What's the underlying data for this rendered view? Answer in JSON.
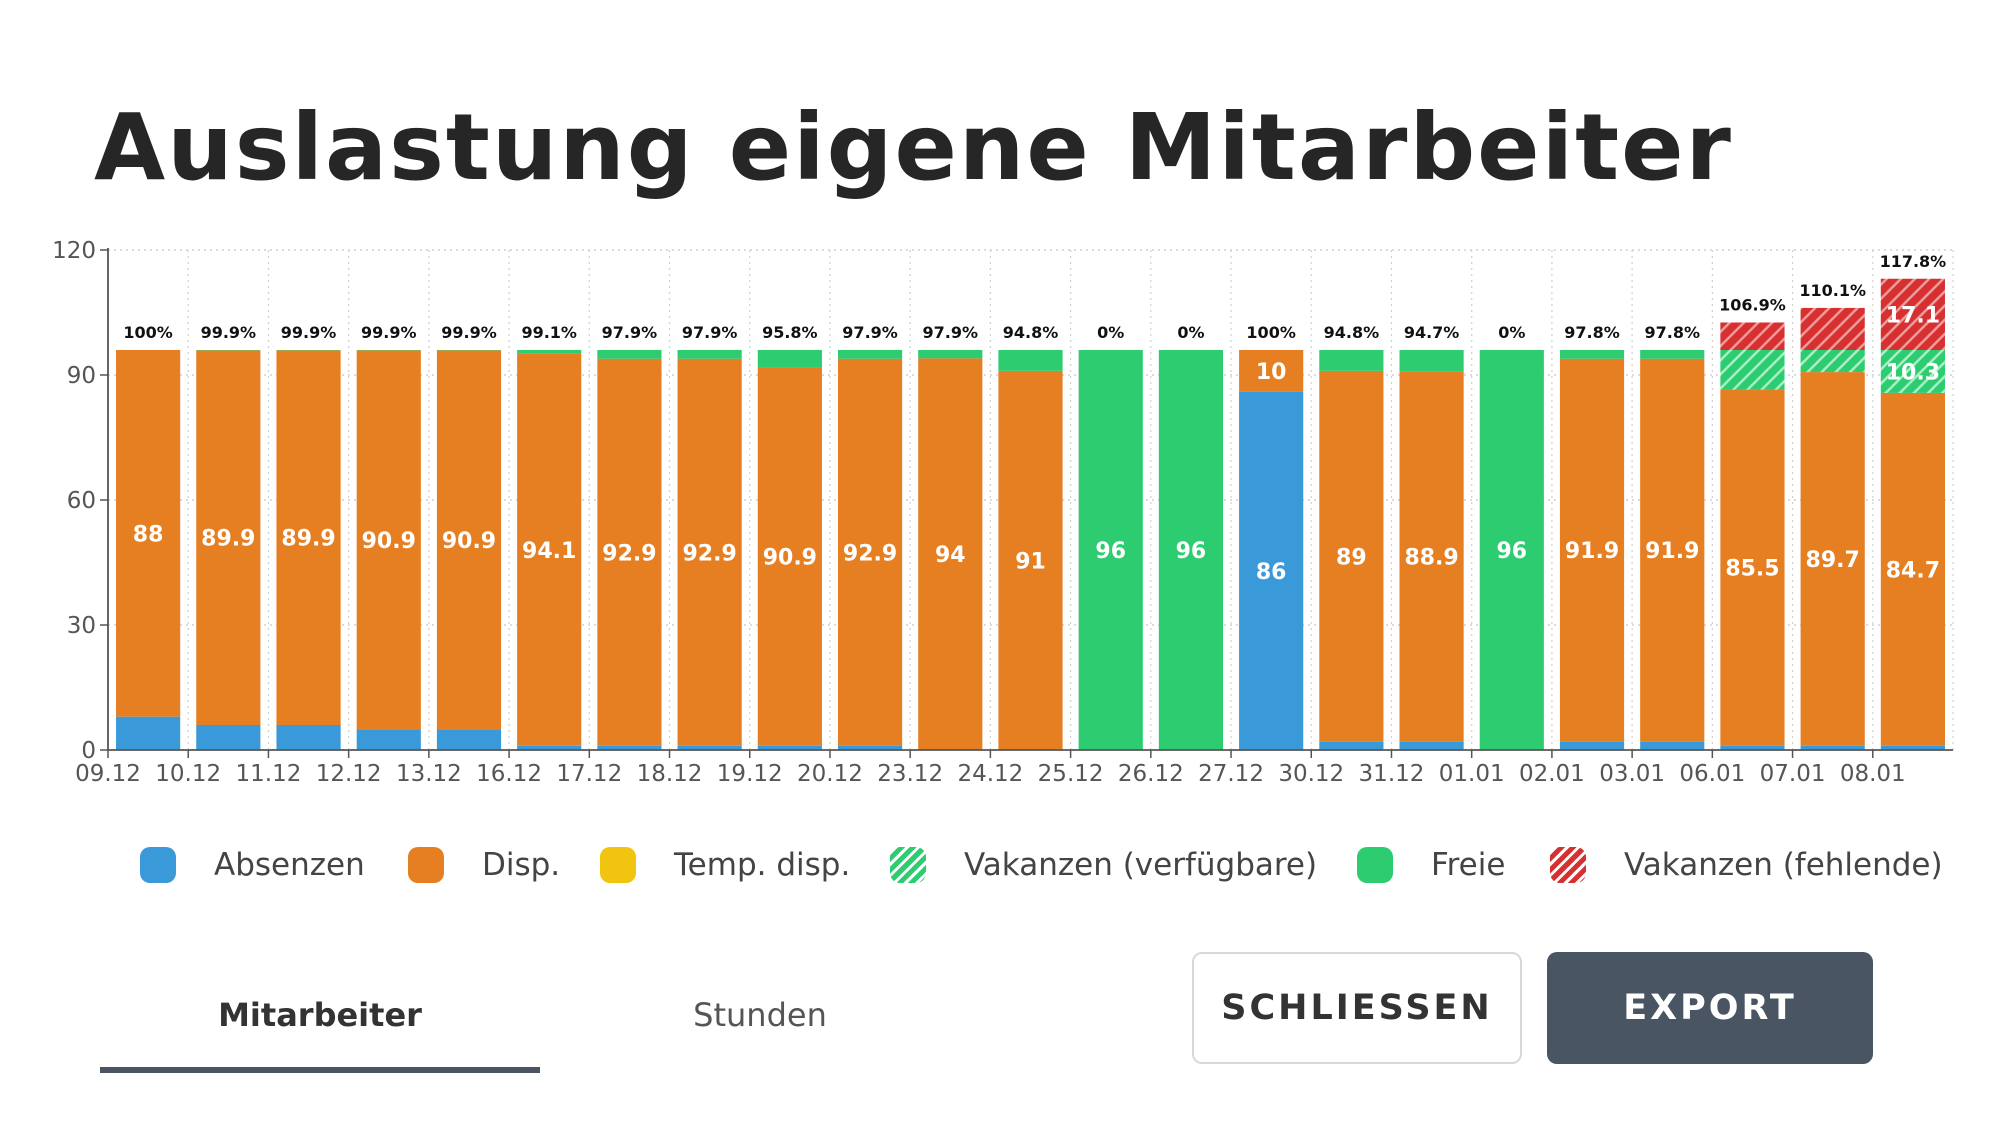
{
  "title": "Auslastung eigene Mitarbeiter",
  "colors": {
    "absenzen": "#3a9ad9",
    "disp": "#e67e22",
    "temp_disp": "#f1c40f",
    "vakanzen_verfuegbare": "#2ecc71",
    "freie": "#2ecc71",
    "vakanzen_fehlende": "#d63031"
  },
  "chart_data": {
    "type": "bar",
    "stacked": true,
    "y_ticks": [
      "0",
      "30",
      "60",
      "90",
      "120"
    ],
    "ylim": [
      0,
      120
    ],
    "grid": true,
    "categories": [
      "09.12",
      "10.12",
      "11.12",
      "12.12",
      "13.12",
      "16.12",
      "17.12",
      "18.12",
      "19.12",
      "20.12",
      "23.12",
      "24.12",
      "25.12",
      "26.12",
      "27.12",
      "30.12",
      "31.12",
      "01.01",
      "02.01",
      "03.01",
      "06.01",
      "07.01",
      "08.01"
    ],
    "percent_labels": [
      "100%",
      "99.9%",
      "99.9%",
      "99.9%",
      "99.9%",
      "99.1%",
      "97.9%",
      "97.9%",
      "95.8%",
      "97.9%",
      "97.9%",
      "94.8%",
      "0%",
      "0%",
      "100%",
      "94.8%",
      "94.7%",
      "0%",
      "97.8%",
      "97.8%",
      "106.9%",
      "110.1%",
      "117.8%"
    ],
    "series": [
      {
        "name": "Absenzen",
        "key": "absenzen",
        "values": [
          8,
          6,
          6,
          5,
          5,
          1,
          1,
          1,
          1,
          1,
          0,
          0,
          0,
          0,
          86,
          2,
          2,
          0,
          2,
          2,
          1,
          1,
          1
        ]
      },
      {
        "name": "Disp.",
        "key": "disp",
        "values": [
          88,
          89.9,
          89.9,
          90.9,
          90.9,
          94.1,
          92.9,
          92.9,
          90.9,
          92.9,
          94,
          91,
          0,
          0,
          10,
          89,
          88.9,
          0,
          91.9,
          91.9,
          85.5,
          89.7,
          84.7
        ]
      },
      {
        "name": "Temp. disp.",
        "key": "temp_disp",
        "values": [
          0,
          0,
          0,
          0,
          0,
          0,
          0,
          0,
          0,
          0,
          0,
          0,
          0,
          0,
          0,
          0,
          0,
          0,
          0,
          0,
          0,
          0,
          0
        ]
      },
      {
        "name": "Vakanzen (verfügbare)",
        "key": "vakanzen_verfuegbare",
        "values": [
          0,
          0,
          0,
          0,
          0,
          0,
          0,
          0,
          0,
          0,
          0,
          0,
          0,
          0,
          0,
          0,
          0,
          0,
          0,
          0,
          9.5,
          5.3,
          10.3
        ]
      },
      {
        "name": "Freie",
        "key": "freie",
        "values": [
          0,
          0.1,
          0.1,
          0.1,
          0.1,
          0.9,
          2.1,
          2.1,
          4.1,
          2.1,
          2,
          5,
          96,
          96,
          0,
          5,
          5.1,
          96,
          2.1,
          2.1,
          0,
          0,
          0
        ]
      },
      {
        "name": "Vakanzen (fehlende)",
        "key": "vakanzen_fehlende",
        "values": [
          0,
          0,
          0,
          0,
          0,
          0,
          0,
          0,
          0,
          0,
          0,
          0,
          0,
          0,
          0,
          0,
          0,
          0,
          0,
          0,
          6.6,
          10.1,
          17.1
        ]
      }
    ],
    "data_labels": [
      [
        {
          "key": "disp",
          "text": "88"
        }
      ],
      [
        {
          "key": "disp",
          "text": "89.9"
        }
      ],
      [
        {
          "key": "disp",
          "text": "89.9"
        }
      ],
      [
        {
          "key": "disp",
          "text": "90.9"
        }
      ],
      [
        {
          "key": "disp",
          "text": "90.9"
        }
      ],
      [
        {
          "key": "disp",
          "text": "94.1"
        }
      ],
      [
        {
          "key": "disp",
          "text": "92.9"
        }
      ],
      [
        {
          "key": "disp",
          "text": "92.9"
        }
      ],
      [
        {
          "key": "disp",
          "text": "90.9"
        }
      ],
      [
        {
          "key": "disp",
          "text": "92.9"
        }
      ],
      [
        {
          "key": "disp",
          "text": "94"
        }
      ],
      [
        {
          "key": "disp",
          "text": "91"
        }
      ],
      [
        {
          "key": "freie",
          "text": "96"
        }
      ],
      [
        {
          "key": "freie",
          "text": "96"
        }
      ],
      [
        {
          "key": "absenzen",
          "text": "86"
        },
        {
          "key": "disp",
          "text": "10"
        }
      ],
      [
        {
          "key": "disp",
          "text": "89"
        }
      ],
      [
        {
          "key": "disp",
          "text": "88.9"
        }
      ],
      [
        {
          "key": "freie",
          "text": "96"
        }
      ],
      [
        {
          "key": "disp",
          "text": "91.9"
        }
      ],
      [
        {
          "key": "disp",
          "text": "91.9"
        }
      ],
      [
        {
          "key": "disp",
          "text": "85.5"
        }
      ],
      [
        {
          "key": "disp",
          "text": "89.7"
        }
      ],
      [
        {
          "key": "disp",
          "text": "84.7"
        },
        {
          "key": "vakanzen_verfuegbare",
          "text": "10.3"
        },
        {
          "key": "vakanzen_fehlende",
          "text": "17.1"
        }
      ]
    ],
    "legend": [
      {
        "label": "Absenzen",
        "key": "absenzen",
        "hatched": false
      },
      {
        "label": "Disp.",
        "key": "disp",
        "hatched": false
      },
      {
        "label": "Temp. disp.",
        "key": "temp_disp",
        "hatched": false
      },
      {
        "label": "Vakanzen (verfügbare)",
        "key": "vakanzen_verfuegbare",
        "hatched": true
      },
      {
        "label": "Freie",
        "key": "freie",
        "hatched": false
      },
      {
        "label": "Vakanzen (fehlende)",
        "key": "vakanzen_fehlende",
        "hatched": true
      }
    ],
    "legend_position": "bottom"
  },
  "tabs": [
    {
      "label": "Mitarbeiter",
      "active": true
    },
    {
      "label": "Stunden",
      "active": false
    }
  ],
  "buttons": {
    "close_label": "SCHLIESSEN",
    "export_label": "EXPORT"
  }
}
